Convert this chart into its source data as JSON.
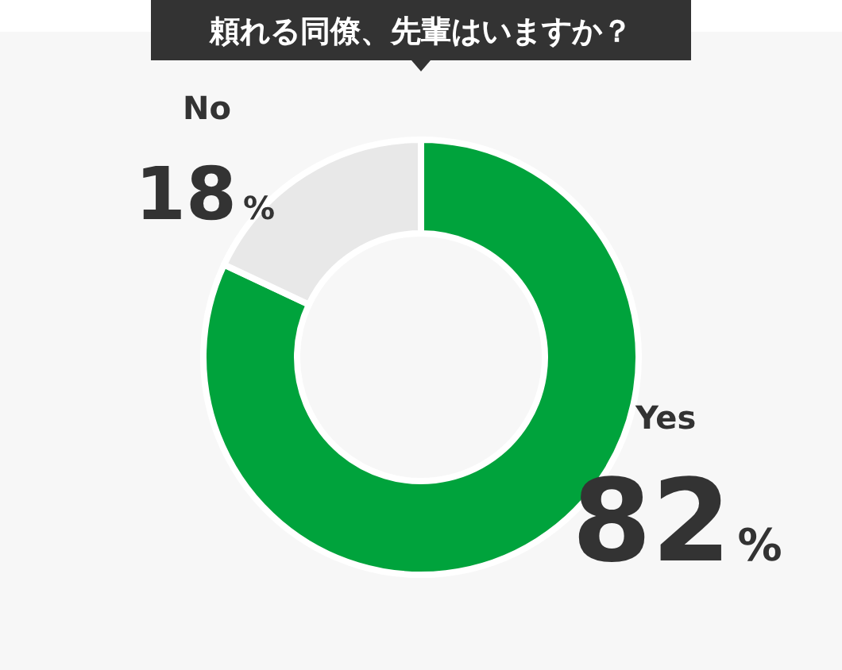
{
  "chart_data": {
    "type": "donut",
    "title": "頼れる同僚、先輩はいますか？",
    "categories": [
      "Yes",
      "No"
    ],
    "values": [
      82,
      18
    ],
    "colors": [
      "#00a33c",
      "#e8e8e8"
    ],
    "value_labels": [
      "82%",
      "18%"
    ]
  }
}
